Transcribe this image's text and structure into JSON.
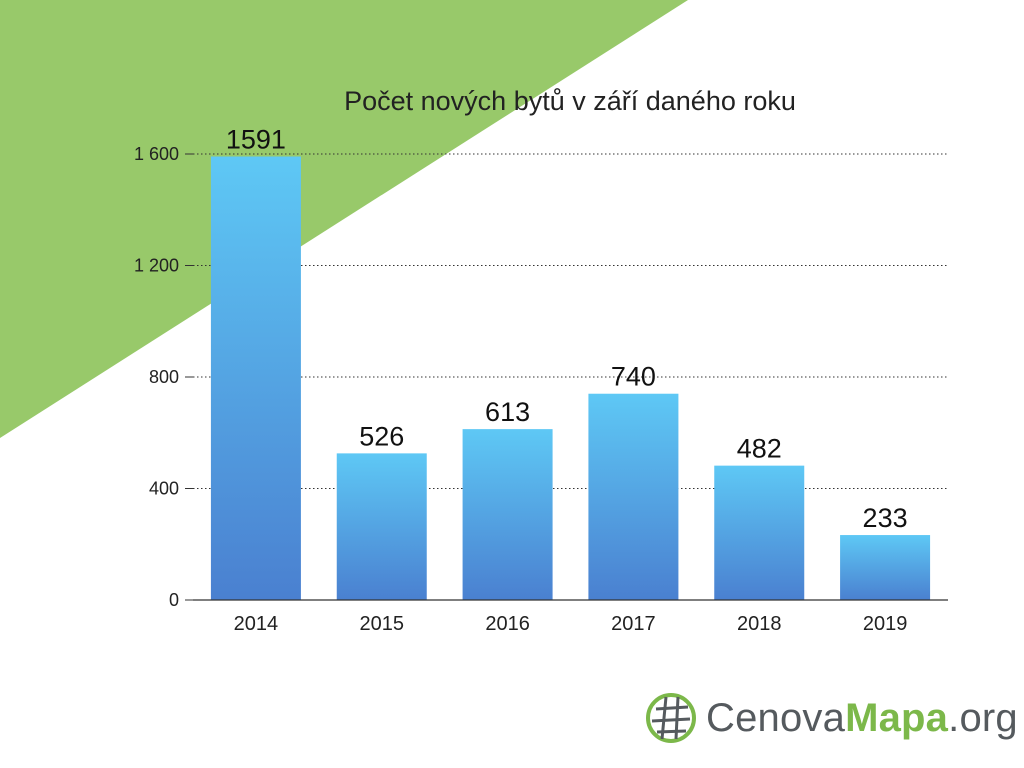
{
  "chart_data": {
    "type": "bar",
    "title": "Počet nových bytů v září daného roku",
    "categories": [
      "2014",
      "2015",
      "2016",
      "2017",
      "2018",
      "2019"
    ],
    "values": [
      1591,
      526,
      613,
      740,
      482,
      233
    ],
    "data_labels": [
      "1591",
      "526",
      "613",
      "740",
      "482",
      "233"
    ],
    "ylim": [
      0,
      1600
    ],
    "yticks": [
      0,
      400,
      800,
      1200,
      1600
    ],
    "ytick_labels": [
      "0",
      "400",
      "800",
      "1 200",
      "1 600"
    ],
    "grid": "dotted horizontal",
    "colors": {
      "bar_top": "#5ec8f5",
      "bar_bottom": "#4a80d0",
      "background_accent": "#98c96a"
    }
  },
  "logo": {
    "part1": "Cenova",
    "part2": "Mapa",
    "part3": ".org"
  }
}
